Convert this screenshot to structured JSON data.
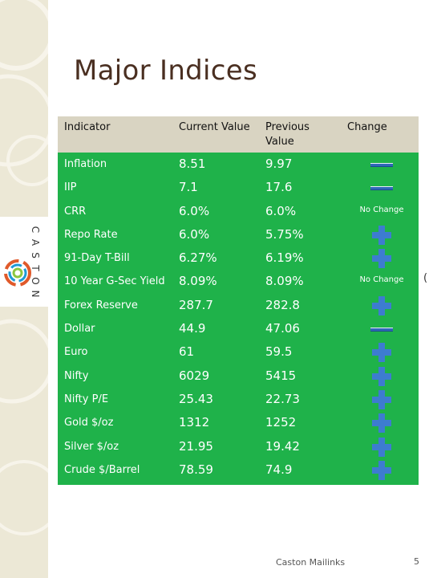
{
  "title": "Major Indices",
  "logo": {
    "letters": [
      "C",
      "A",
      "S",
      "T",
      "O",
      "N"
    ]
  },
  "table": {
    "headers": {
      "indicator": "Indicator",
      "current": "Current Value",
      "previous_line1": "Previous",
      "previous_line2": "Value",
      "change": "Change"
    },
    "rows": [
      {
        "name": "Inflation",
        "current": "8.51",
        "previous": "9.97",
        "change": "decrease"
      },
      {
        "name": "IIP",
        "current": "7.1",
        "previous": "17.6",
        "change": "decrease"
      },
      {
        "name": "CRR",
        "current": "6.0%",
        "previous": "6.0%",
        "change": "none",
        "change_text": "No Change"
      },
      {
        "name": "Repo Rate",
        "current": "6.0%",
        "previous": "5.75%",
        "change": "increase"
      },
      {
        "name": "91-Day T-Bill",
        "current": "6.27%",
        "previous": "6.19%",
        "change": "increase"
      },
      {
        "name": "10 Year G-Sec Yield",
        "current": "8.09%",
        "previous": "8.09%",
        "change": "none",
        "change_text": "No Change"
      },
      {
        "name": "Forex Reserve",
        "current": "287.7",
        "previous": "282.8",
        "change": "increase"
      },
      {
        "name": "Dollar",
        "current": "44.9",
        "previous": "47.06",
        "change": "decrease"
      },
      {
        "name": "Euro",
        "current": "61",
        "previous": "59.5",
        "change": "increase"
      },
      {
        "name": "Nifty",
        "current": "6029",
        "previous": "5415",
        "change": "increase"
      },
      {
        "name": "Nifty P/E",
        "current": "25.43",
        "previous": "22.73",
        "change": "increase"
      },
      {
        "name": "Gold $/oz",
        "current": "1312",
        "previous": "1252",
        "change": "increase"
      },
      {
        "name": "Silver $/oz",
        "current": "21.95",
        "previous": "19.42",
        "change": "increase"
      },
      {
        "name": "Crude $/Barrel",
        "current": "78.59",
        "previous": "74.9",
        "change": "increase"
      }
    ]
  },
  "icons": {
    "decrease": "minus-icon",
    "increase": "plus-icon"
  },
  "colors": {
    "table_body": "#1fb24a",
    "header_bg": "#d9d4c2",
    "icon_blue": "#3d7cd0"
  },
  "footer": {
    "text": "Caston Mailinks",
    "page_number": "5"
  },
  "edge_mark": "("
}
